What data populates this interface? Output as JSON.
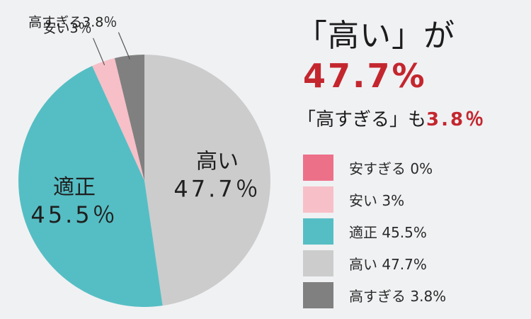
{
  "chart_data": {
    "type": "pie",
    "start_angle_deg": 0,
    "direction": "clockwise",
    "slices": [
      {
        "label": "高い",
        "value": 47.7,
        "color": "#cccccc",
        "inside_label": [
          "高い",
          "47.7％"
        ],
        "inside_color": "#1f1f1f"
      },
      {
        "label": "適正",
        "value": 45.5,
        "color": "#55bec4",
        "inside_label": [
          "適正",
          "45.5％"
        ],
        "inside_color": "#1f1f1f"
      },
      {
        "label": "安すぎる",
        "value": 0,
        "color": "#ed7089"
      },
      {
        "label": "安い",
        "value": 3,
        "color": "#f7bfc7",
        "outside_label": "安い3％"
      },
      {
        "label": "高すぎる",
        "value": 3.8,
        "color": "#808080",
        "outside_label": "高すぎる3.8％"
      }
    ],
    "legend": [
      {
        "text": "安すぎる 0%",
        "color": "#ed7089"
      },
      {
        "text": "安い 3%",
        "color": "#f7bfc7"
      },
      {
        "text": "適正 45.5%",
        "color": "#55bec4"
      },
      {
        "text": "高い 47.7%",
        "color": "#cccccc"
      },
      {
        "text": "高すぎる 3.8%",
        "color": "#808080"
      }
    ]
  },
  "headline": "「高い」が",
  "headline_pct": "47.7%",
  "subline": {
    "text": "「高すぎる」も",
    "pct": "3.8％"
  }
}
